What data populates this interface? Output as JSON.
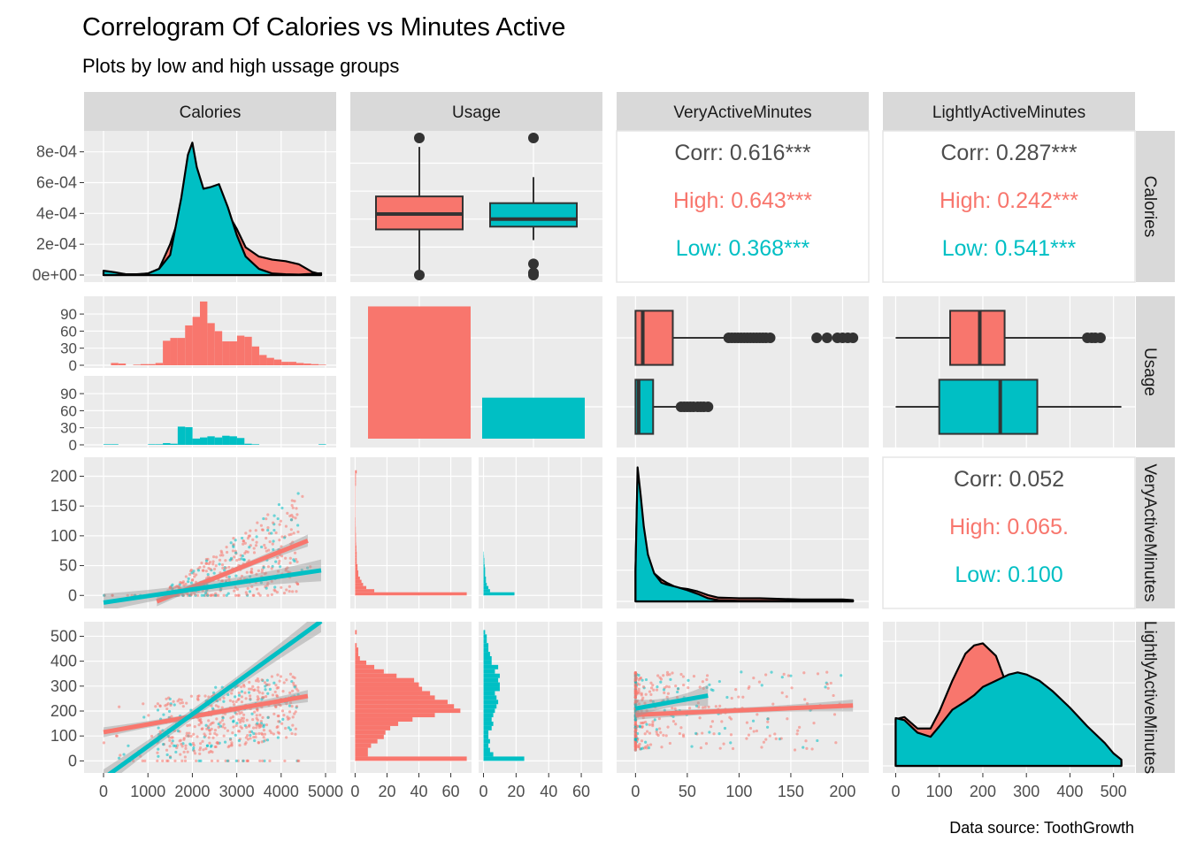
{
  "title": "Correlogram Of Calories vs Minutes Active",
  "subtitle": "Plots by low and high ussage groups",
  "caption": "Data source: ToothGrowth",
  "colors": {
    "high": "#F8766D",
    "low": "#00BFC4",
    "panel": "#EBEBEB",
    "strip": "#D9D9D9",
    "text": "#4D4D4D",
    "grid": "#FFFFFF"
  },
  "variables": [
    "Calories",
    "Usage",
    "VeryActiveMinutes",
    "LightlyActiveMinutes"
  ],
  "right_strips": [
    "Calories",
    "Usage",
    "VeryActiveMinutes",
    "LightlyActiveMinutes"
  ],
  "groups": [
    "High",
    "Low"
  ],
  "chart_data": [
    {
      "panel": "Calories-Calories",
      "type": "area",
      "x": [
        0,
        250,
        500,
        750,
        1000,
        1250,
        1500,
        1750,
        1900,
        2000,
        2100,
        2250,
        2400,
        2600,
        2800,
        3000,
        3200,
        3500,
        3800,
        4100,
        4400,
        4700,
        4900
      ],
      "series": [
        {
          "name": "High",
          "values": [
            1e-05,
            1e-05,
            5e-06,
            5e-06,
            1e-05,
            4e-05,
            0.0002,
            0.00042,
            0.00055,
            0.00063,
            0.0006,
            0.00052,
            0.00047,
            0.00045,
            0.0004,
            0.0003,
            0.00018,
            0.00012,
            0.0001,
            9e-05,
            7e-05,
            2e-05,
            5e-06
          ]
        },
        {
          "name": "Low",
          "values": [
            2.8e-05,
            1.8e-05,
            5e-06,
            3e-06,
            1e-05,
            4e-05,
            0.00013,
            0.0005,
            0.00078,
            0.00086,
            0.0007,
            0.00056,
            0.00057,
            0.00059,
            0.00044,
            0.00026,
            0.00012,
            4e-05,
            1e-05,
            5e-06,
            3e-06,
            8e-06,
            1.2e-05
          ]
        }
      ],
      "yticks": [
        "0e+00",
        "2e-04",
        "4e-04",
        "6e-04",
        "8e-04"
      ],
      "ylim": [
        0,
        0.00089
      ]
    },
    {
      "panel": "Usage-Calories",
      "type": "box",
      "series": [
        {
          "name": "High",
          "lower_whisker": 0,
          "q1": 1630,
          "median": 2180,
          "q3": 2810,
          "upper_whisker": 4580,
          "outliers": [
            0,
            4900
          ]
        },
        {
          "name": "Low",
          "lower_whisker": 1250,
          "q1": 1730,
          "median": 2000,
          "q3": 2570,
          "upper_whisker": 3500,
          "outliers": [
            0,
            400,
            80,
            4900
          ]
        }
      ]
    },
    {
      "panel": "VeryActiveMinutes-Calories",
      "type": "table",
      "rows": [
        {
          "group": "Corr",
          "label": "Corr: 0.616***"
        },
        {
          "group": "High",
          "label": "High: 0.643***"
        },
        {
          "group": "Low",
          "label": "Low: 0.368***"
        }
      ]
    },
    {
      "panel": "LightlyActiveMinutes-Calories",
      "type": "table",
      "rows": [
        {
          "group": "Corr",
          "label": "Corr: 0.287***"
        },
        {
          "group": "High",
          "label": "High: 0.242***"
        },
        {
          "group": "Low",
          "label": "Low: 0.541***"
        }
      ]
    },
    {
      "panel": "Calories-Usage",
      "type": "bar",
      "bin_start": 0,
      "bin_width": 167,
      "series": [
        {
          "name": "High",
          "values": [
            0,
            4,
            3,
            0,
            1,
            2,
            2,
            4,
            43,
            48,
            48,
            70,
            85,
            112,
            74,
            60,
            42,
            42,
            52,
            50,
            33,
            18,
            13,
            10,
            6,
            6,
            4,
            3,
            2,
            1
          ]
        },
        {
          "name": "Low",
          "values": [
            1,
            1,
            0,
            0,
            0,
            0,
            1,
            1,
            3,
            2,
            32,
            31,
            11,
            13,
            15,
            13,
            16,
            15,
            12,
            2,
            1,
            0,
            0,
            0,
            0,
            0,
            0,
            0,
            0,
            1
          ]
        }
      ],
      "yticks": [
        "0",
        "30",
        "60",
        "90"
      ],
      "ylim": [
        0,
        115
      ]
    },
    {
      "panel": "Usage-Usage",
      "type": "bar",
      "categories": [
        "High",
        "Low"
      ],
      "values": [
        100,
        31
      ],
      "ylim": [
        0,
        105
      ]
    },
    {
      "panel": "VeryActiveMinutes-Usage",
      "type": "box",
      "series": [
        {
          "name": "High",
          "lower_whisker": 0,
          "q1": 0,
          "median": 7,
          "q3": 36,
          "upper_whisker": 90,
          "outliers": [
            90,
            93,
            96,
            99,
            102,
            105,
            108,
            111,
            114,
            117,
            120,
            123,
            126,
            130,
            175,
            185,
            195,
            200,
            205,
            210
          ]
        },
        {
          "name": "Low",
          "lower_whisker": 0,
          "q1": 0,
          "median": 3,
          "q3": 17,
          "upper_whisker": 42,
          "outliers": [
            44,
            47,
            50,
            53,
            56,
            60,
            63,
            66,
            70
          ]
        }
      ]
    },
    {
      "panel": "LightlyActiveMinutes-Usage",
      "type": "box",
      "series": [
        {
          "name": "High",
          "lower_whisker": 0,
          "q1": 125,
          "median": 193,
          "q3": 250,
          "upper_whisker": 430,
          "outliers": [
            440,
            450,
            458,
            470
          ]
        },
        {
          "name": "Low",
          "lower_whisker": 0,
          "q1": 100,
          "median": 240,
          "q3": 325,
          "upper_whisker": 518,
          "outliers": []
        }
      ]
    },
    {
      "panel": "Calories-VeryActiveMinutes",
      "type": "scatter",
      "fits": [
        {
          "name": "High",
          "x": [
            1200,
            4600
          ],
          "y": [
            -10,
            92
          ]
        },
        {
          "name": "Low",
          "x": [
            0,
            4900
          ],
          "y": [
            -12,
            42
          ]
        }
      ],
      "yticks": [
        "0",
        "50",
        "100",
        "150",
        "200"
      ],
      "ylim": [
        -10,
        220
      ]
    },
    {
      "panel": "Usage-VeryActiveMinutes",
      "type": "bar",
      "orientation": "horizontal",
      "bin_start": 0,
      "bin_width": 5.25,
      "series": [
        {
          "name": "High",
          "values": [
            70,
            12,
            7,
            5,
            4,
            3,
            2,
            2,
            1.5,
            1.5,
            1,
            1,
            1,
            1,
            0.8,
            0.8,
            0.6,
            0.5,
            0.5,
            0.5,
            0.4,
            0.4,
            0.3,
            0.3,
            0.3,
            0.2,
            0.2,
            0.2,
            0.2,
            0.2,
            0.2,
            0.2,
            0.2,
            0.2,
            0.2,
            0.5,
            0.5,
            0.5,
            0.5,
            1
          ]
        },
        {
          "name": "Low",
          "values": [
            19,
            4,
            3,
            2,
            1.5,
            1.5,
            1,
            1,
            1,
            0.7,
            0.5,
            0.5,
            0.3,
            0.2,
            0,
            0,
            0,
            0,
            0,
            0,
            0,
            0,
            0,
            0,
            0,
            0,
            0,
            0,
            0,
            0,
            0,
            0,
            0,
            0,
            0,
            0,
            0,
            0,
            0,
            0
          ]
        }
      ],
      "xticks": [
        "0",
        "20",
        "40",
        "60"
      ],
      "xlim": [
        -3,
        73
      ]
    },
    {
      "panel": "VeryActiveMinutes-VeryActiveMinutes",
      "type": "area",
      "x": [
        0,
        2,
        5,
        8,
        12,
        18,
        25,
        30,
        40,
        50,
        60,
        70,
        80,
        100,
        120,
        140,
        160,
        180,
        200,
        210
      ],
      "series": [
        {
          "name": "High",
          "values": [
            0.05,
            0.2,
            0.16,
            0.11,
            0.07,
            0.045,
            0.035,
            0.03,
            0.022,
            0.02,
            0.016,
            0.01,
            0.006,
            0.005,
            0.005,
            0.004,
            0.003,
            0.003,
            0.003,
            0.002
          ]
        },
        {
          "name": "Low",
          "values": [
            0.05,
            0.215,
            0.17,
            0.12,
            0.075,
            0.045,
            0.03,
            0.027,
            0.023,
            0.018,
            0.012,
            0.005,
            0.002,
            0.001,
            0.001,
            0.001,
            0.001,
            0.001,
            0.001,
            0.001
          ]
        }
      ],
      "ylim": [
        0,
        0.22
      ]
    },
    {
      "panel": "LightlyActiveMinutes-VeryActiveMinutes",
      "type": "table",
      "rows": [
        {
          "group": "Corr",
          "label": "Corr: 0.052"
        },
        {
          "group": "High",
          "label": "High: 0.065."
        },
        {
          "group": "Low",
          "label": "Low: 0.100"
        }
      ]
    },
    {
      "panel": "Calories-LightlyActiveMinutes",
      "type": "scatter",
      "fits": [
        {
          "name": "High",
          "x": [
            0,
            4600
          ],
          "y": [
            115,
            260
          ]
        },
        {
          "name": "Low",
          "x": [
            0,
            4900
          ],
          "y": [
            -70,
            560
          ]
        }
      ],
      "xticks": [
        "0",
        "1000",
        "2000",
        "3000",
        "4000",
        "5000"
      ],
      "xlim": [
        -200,
        5000
      ],
      "yticks": [
        "0",
        "100",
        "200",
        "300",
        "400",
        "500"
      ],
      "ylim": [
        -20,
        530
      ]
    },
    {
      "panel": "Usage-LightlyActiveMinutes",
      "type": "bar",
      "orientation": "horizontal",
      "bin_start": 0,
      "bin_width": 17.5,
      "series": [
        {
          "name": "High",
          "values": [
            70,
            8,
            8,
            10,
            14,
            18,
            19,
            22,
            27,
            36,
            50,
            66,
            62,
            58,
            50,
            47,
            42,
            40,
            37,
            26,
            18,
            12,
            7,
            3,
            2,
            2,
            1,
            0,
            0,
            1
          ]
        },
        {
          "name": "Low",
          "values": [
            25,
            6,
            4,
            3,
            4,
            3,
            3,
            5,
            6,
            5,
            6,
            7,
            8,
            9,
            8,
            7,
            10,
            10,
            9,
            10,
            7,
            9,
            5,
            5,
            4,
            3,
            3,
            2,
            2,
            1
          ]
        }
      ],
      "xticks": [
        "0",
        "20",
        "40",
        "60"
      ],
      "xlim": [
        -3,
        73
      ]
    },
    {
      "panel": "VeryActiveMinutes-LightlyActiveMinutes",
      "type": "scatter",
      "fits": [
        {
          "name": "High",
          "x": [
            0,
            210
          ],
          "y": [
            185,
            222
          ]
        },
        {
          "name": "Low",
          "x": [
            0,
            70
          ],
          "y": [
            210,
            262
          ]
        }
      ],
      "xticks": [
        "0",
        "50",
        "100",
        "150",
        "200"
      ],
      "xlim": [
        -8,
        215
      ]
    },
    {
      "panel": "LightlyActiveMinutes-LightlyActiveMinutes",
      "type": "area",
      "x": [
        0,
        20,
        50,
        80,
        100,
        130,
        160,
        180,
        200,
        230,
        260,
        280,
        300,
        330,
        360,
        400,
        440,
        480,
        500,
        518
      ],
      "series": [
        {
          "name": "High",
          "values": [
            0.00225,
            0.00235,
            0.0018,
            0.0018,
            0.0026,
            0.0041,
            0.0054,
            0.0058,
            0.0059,
            0.0053,
            0.0036,
            0.0026,
            0.0018,
            0.001,
            0.0006,
            0.0003,
            0.0003,
            0.0005,
            0.0004,
            0.0002
          ]
        },
        {
          "name": "Low",
          "values": [
            0.0023,
            0.0022,
            0.0016,
            0.0014,
            0.0019,
            0.0027,
            0.0031,
            0.0034,
            0.0038,
            0.0041,
            0.0044,
            0.0045,
            0.0044,
            0.0041,
            0.0036,
            0.0028,
            0.0019,
            0.0011,
            0.0006,
            0.0003
          ]
        }
      ],
      "xticks": [
        "0",
        "100",
        "200",
        "300",
        "400",
        "500"
      ],
      "xlim": [
        -5,
        525
      ],
      "ylim": [
        0,
        0.0066
      ]
    }
  ]
}
